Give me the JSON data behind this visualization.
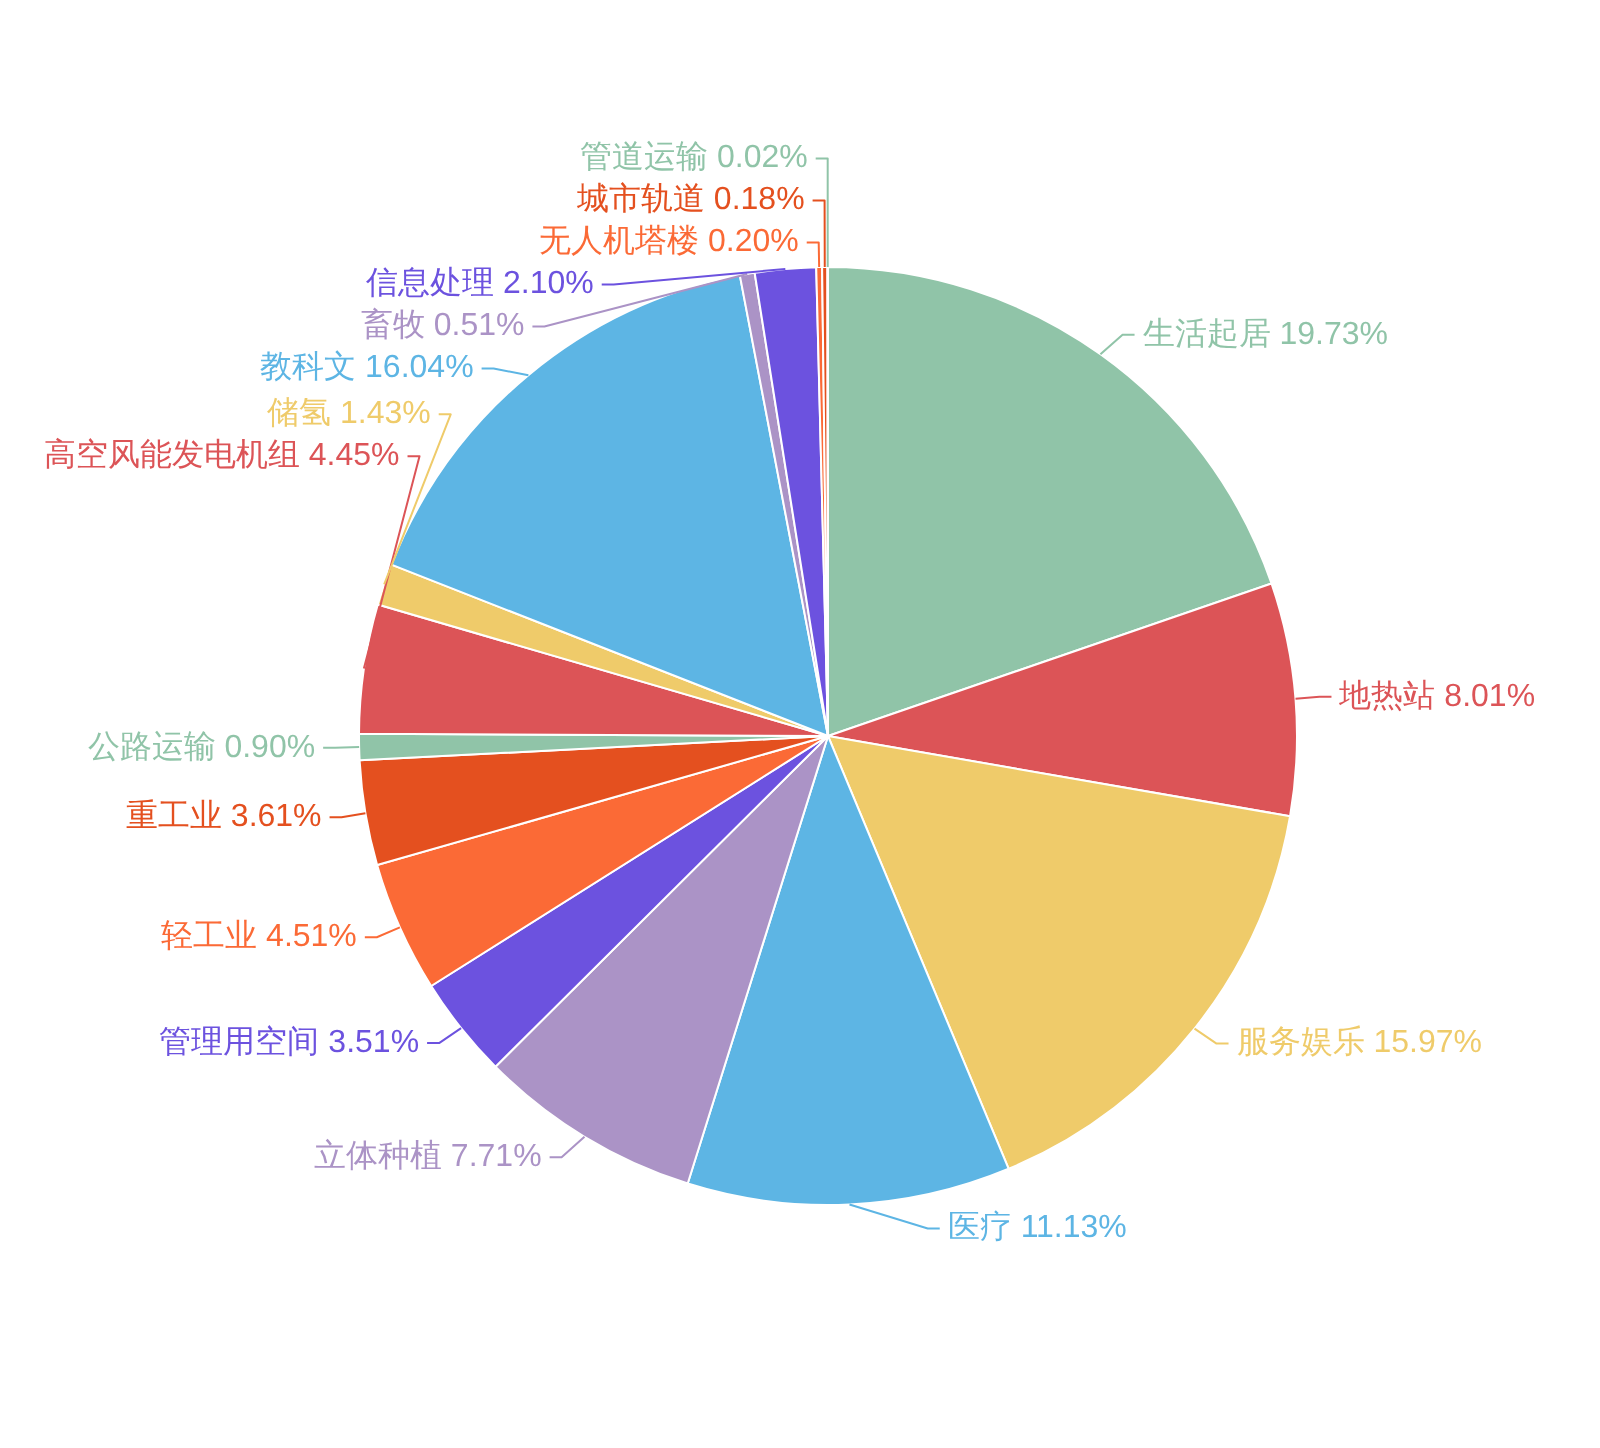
{
  "chart_data": {
    "type": "pie",
    "categories": [
      "生活起居",
      "地热站",
      "服务娱乐",
      "医疗",
      "立体种植",
      "管理用空间",
      "轻工业",
      "重工业",
      "公路运输",
      "高空风能发电机组",
      "储氢",
      "教科文",
      "畜牧",
      "信息处理",
      "无人机塔楼",
      "城市轨道",
      "管道运输"
    ],
    "values": [
      19.73,
      8.01,
      15.97,
      11.13,
      7.71,
      3.51,
      4.51,
      3.61,
      0.9,
      4.45,
      1.43,
      16.04,
      0.51,
      2.1,
      0.2,
      0.18,
      0.02
    ],
    "value_labels": [
      "19.73%",
      "8.01%",
      "15.97%",
      "11.13%",
      "7.71%",
      "3.51%",
      "4.51%",
      "3.61%",
      "0.90%",
      "4.45%",
      "1.43%",
      "16.04%",
      "0.51%",
      "2.10%",
      "0.20%",
      "0.18%",
      "0.02%"
    ],
    "colors": [
      "#90c4a8",
      "#dc5457",
      "#efcb6a",
      "#5db5e4",
      "#ab93c6",
      "#6c52df",
      "#fb6a36",
      "#e4501f",
      "#90c4a8",
      "#dc5457",
      "#efcb6a",
      "#5db5e4",
      "#ab93c6",
      "#6c52df",
      "#fb6a36",
      "#e4501f",
      "#90c4a8"
    ]
  }
}
